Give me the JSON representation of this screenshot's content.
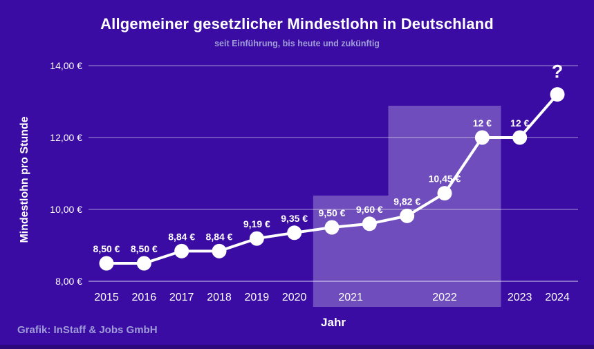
{
  "header": {
    "title": "Allgemeiner gesetzlicher Mindestlohn in Deutschland",
    "subtitle": "seit Einführung, bis heute und zukünftig"
  },
  "footer": {
    "credit": "Grafik: InStaff & Jobs GmbH"
  },
  "colors": {
    "background": "#3A0CA3",
    "line": "#FFFFFF",
    "marker": "#FFFFFF",
    "gridline": "rgba(255,255,255,0.45)",
    "axis_line": "rgba(255,255,255,0.65)",
    "highlight_box": "rgba(255,255,255,0.27)",
    "muted_text": "#A09CD8"
  },
  "chart_data": {
    "type": "line",
    "title": "Allgemeiner gesetzlicher Mindestlohn in Deutschland",
    "subtitle": "seit Einführung, bis heute und zukünftig",
    "xlabel": "Jahr",
    "ylabel": "Mindestlohn pro Stunde",
    "ylim": [
      8,
      14
    ],
    "grid": "horizontal",
    "legend": "none",
    "yticks": [
      {
        "value": 8,
        "label": "8,00 €"
      },
      {
        "value": 10,
        "label": "10,00 €"
      },
      {
        "value": 12,
        "label": "12,00 €"
      },
      {
        "value": 14,
        "label": "14,00 €"
      }
    ],
    "x_categories": [
      "2015",
      "2016",
      "2017",
      "2018",
      "2019",
      "2020",
      "2021",
      "2022",
      "2023",
      "2024"
    ],
    "points": [
      {
        "year": "2015",
        "value": 8.5,
        "label": "8,50 €",
        "projected": false
      },
      {
        "year": "2016",
        "value": 8.5,
        "label": "8,50 €",
        "projected": false
      },
      {
        "year": "2017",
        "value": 8.84,
        "label": "8,84 €",
        "projected": false
      },
      {
        "year": "2018",
        "value": 8.84,
        "label": "8,84 €",
        "projected": false
      },
      {
        "year": "2019",
        "value": 9.19,
        "label": "9,19 €",
        "projected": false
      },
      {
        "year": "2020",
        "value": 9.35,
        "label": "9,35 €",
        "projected": false
      },
      {
        "year": "2021",
        "value": 9.5,
        "label": "9,50 €",
        "projected": false
      },
      {
        "year": "2021",
        "value": 9.6,
        "label": "9,60 €",
        "projected": false
      },
      {
        "year": "2022",
        "value": 9.82,
        "label": "9,82 €",
        "projected": false
      },
      {
        "year": "2022",
        "value": 10.45,
        "label": "10,45 €",
        "projected": false
      },
      {
        "year": "2022",
        "value": 12,
        "label": "12 €",
        "projected": false
      },
      {
        "year": "2023",
        "value": 12,
        "label": "12 €",
        "projected": false
      },
      {
        "year": "2024",
        "value": 13.2,
        "label": "?",
        "projected": true
      }
    ],
    "highlighted_years": [
      "2021",
      "2022"
    ]
  }
}
